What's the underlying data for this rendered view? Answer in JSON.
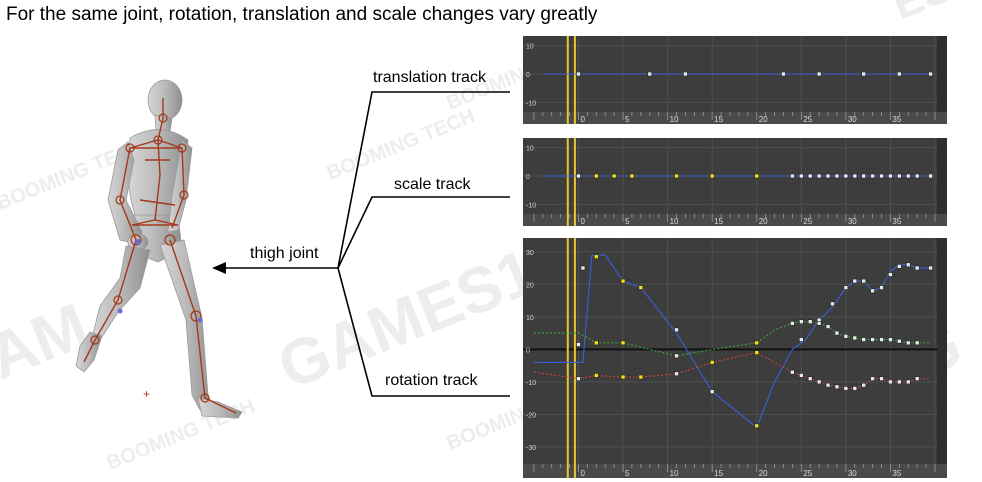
{
  "title": "For the same joint, rotation, translation and scale changes vary greatly",
  "labels": {
    "translation": "translation track",
    "scale": "scale track",
    "thigh": "thigh joint",
    "rotation": "rotation track"
  },
  "colors": {
    "panel_bg": "#3d3d3d",
    "grid": "#4f4f4f",
    "time_marker": "#e8c830",
    "curve_blue": "#3a5fd8",
    "curve_green": "#3aa83a",
    "curve_red": "#d04040",
    "bone": "#a23a1a"
  },
  "chart_data": [
    {
      "type": "line",
      "name_on_image": "translation track",
      "y_ticks": [
        "10",
        "0",
        "-10"
      ],
      "x_ticks": [
        "0",
        "5",
        "10",
        "15",
        "20",
        "25",
        "30",
        "35"
      ],
      "xlim": [
        -6,
        40
      ],
      "ylim": [
        -12,
        12
      ],
      "series": [
        {
          "color": "#3a5fd8",
          "x": [
            -4,
            0,
            8,
            12,
            23,
            27,
            32,
            36,
            39.5
          ],
          "y": [
            0,
            0,
            0,
            0,
            0,
            0,
            0,
            0,
            0
          ],
          "keys_x": [
            0,
            8,
            12,
            23,
            27,
            32,
            36,
            39.5
          ],
          "keys_y": [
            0,
            0,
            0,
            0,
            0,
            0,
            0,
            0
          ]
        }
      ]
    },
    {
      "type": "line",
      "name_on_image": "scale track",
      "y_ticks": [
        "10",
        "0",
        "-10"
      ],
      "x_ticks": [
        "0",
        "5",
        "10",
        "15",
        "20",
        "25",
        "30",
        "35"
      ],
      "xlim": [
        -6,
        40
      ],
      "ylim": [
        -12,
        12
      ],
      "series": [
        {
          "color": "#3a5fd8",
          "x": [
            -4,
            39.5
          ],
          "y": [
            0,
            0
          ],
          "keys_x": [
            0,
            2,
            4,
            6,
            11,
            15,
            20,
            24,
            25,
            26,
            27,
            28,
            29,
            30,
            31,
            32,
            33,
            34,
            35,
            36,
            37,
            38,
            39.5
          ],
          "keys_y": [
            0,
            0,
            0,
            0,
            0,
            0,
            0,
            0,
            0,
            0,
            0,
            0,
            0,
            0,
            0,
            0,
            0,
            0,
            0,
            0,
            0,
            0,
            0
          ],
          "selected": [
            2,
            4,
            6,
            11,
            15,
            20
          ]
        }
      ]
    },
    {
      "type": "line",
      "name_on_image": "rotation track",
      "y_ticks": [
        "30",
        "20",
        "10",
        "0",
        "-10",
        "-20",
        "-30"
      ],
      "x_ticks": [
        "0",
        "5",
        "10",
        "15",
        "20",
        "25",
        "30",
        "35"
      ],
      "xlim": [
        -6,
        40
      ],
      "ylim": [
        -34,
        33
      ],
      "series": [
        {
          "color": "#3a5fd8",
          "x": [
            -5,
            0.5,
            1.5,
            3,
            5,
            7,
            11,
            15,
            20,
            22,
            23,
            24,
            25.5,
            27,
            28.5,
            30,
            31,
            32,
            33,
            34,
            35,
            36,
            37,
            38,
            39.5
          ],
          "y": [
            -4,
            -4,
            29,
            29,
            21,
            19,
            5,
            -13,
            -24,
            -10,
            -5,
            0,
            3,
            9,
            13,
            19,
            21,
            21,
            18,
            19,
            24,
            26,
            26,
            25,
            25
          ],
          "keys_x": [
            0.5,
            2,
            5,
            7,
            11,
            15,
            20,
            24,
            25,
            27,
            28.5,
            30,
            31,
            32,
            33,
            34,
            35,
            36,
            37,
            38,
            39.5
          ],
          "keys_y": [
            25,
            28.5,
            21,
            19,
            6,
            -13,
            -23.5,
            -7,
            3,
            9,
            14,
            19,
            21,
            21,
            18,
            19,
            23,
            25.5,
            26,
            25,
            25
          ],
          "selected": [
            2,
            5,
            7,
            20
          ]
        },
        {
          "color": "#3aa83a",
          "x": [
            -5,
            0,
            2,
            5,
            11,
            15,
            20,
            22,
            24,
            25,
            26,
            27,
            28,
            29,
            30,
            31,
            32,
            33,
            34,
            35,
            36,
            37,
            38,
            39.5
          ],
          "y": [
            5,
            5,
            2,
            2,
            -2,
            0,
            2,
            6,
            8,
            8.5,
            8.5,
            8,
            7,
            5,
            4,
            3.5,
            3,
            3,
            3,
            3,
            2.5,
            2,
            2,
            2
          ],
          "keys_x": [
            0,
            2,
            5,
            11,
            20,
            24,
            25,
            26,
            27,
            28,
            29,
            30,
            31,
            32,
            33,
            34,
            35,
            36,
            37,
            38
          ],
          "keys_y": [
            1.5,
            2,
            2,
            -2,
            2,
            8,
            8.5,
            8.5,
            8,
            7,
            5,
            4,
            3.5,
            3,
            3,
            3,
            3,
            2.5,
            2,
            2
          ],
          "selected": [
            2,
            5,
            20
          ]
        },
        {
          "color": "#d04040",
          "x": [
            -5,
            0,
            2,
            5,
            7,
            11,
            15,
            20,
            22,
            24,
            26,
            28,
            30,
            31,
            32,
            33,
            34,
            35,
            36,
            37,
            38,
            39.5
          ],
          "y": [
            -7,
            -9,
            -8,
            -8.5,
            -8.5,
            -7.5,
            -4,
            -1,
            -4,
            -7,
            -9,
            -11,
            -12,
            -12,
            -11,
            -9,
            -9,
            -10,
            -10,
            -10,
            -9,
            -9
          ],
          "keys_x": [
            0,
            2,
            5,
            7,
            11,
            15,
            20,
            24,
            25,
            26,
            27,
            28,
            29,
            30,
            31,
            32,
            33,
            34,
            35,
            36,
            37,
            38
          ],
          "keys_y": [
            -9,
            -8,
            -8.5,
            -8.5,
            -7.5,
            -4,
            -1,
            -7,
            -8,
            -9,
            -10,
            -11,
            -11.5,
            -12,
            -12,
            -11,
            -9,
            -9,
            -10,
            -10,
            -10,
            -9
          ],
          "selected": [
            2,
            5,
            7,
            15,
            20
          ]
        }
      ]
    }
  ]
}
